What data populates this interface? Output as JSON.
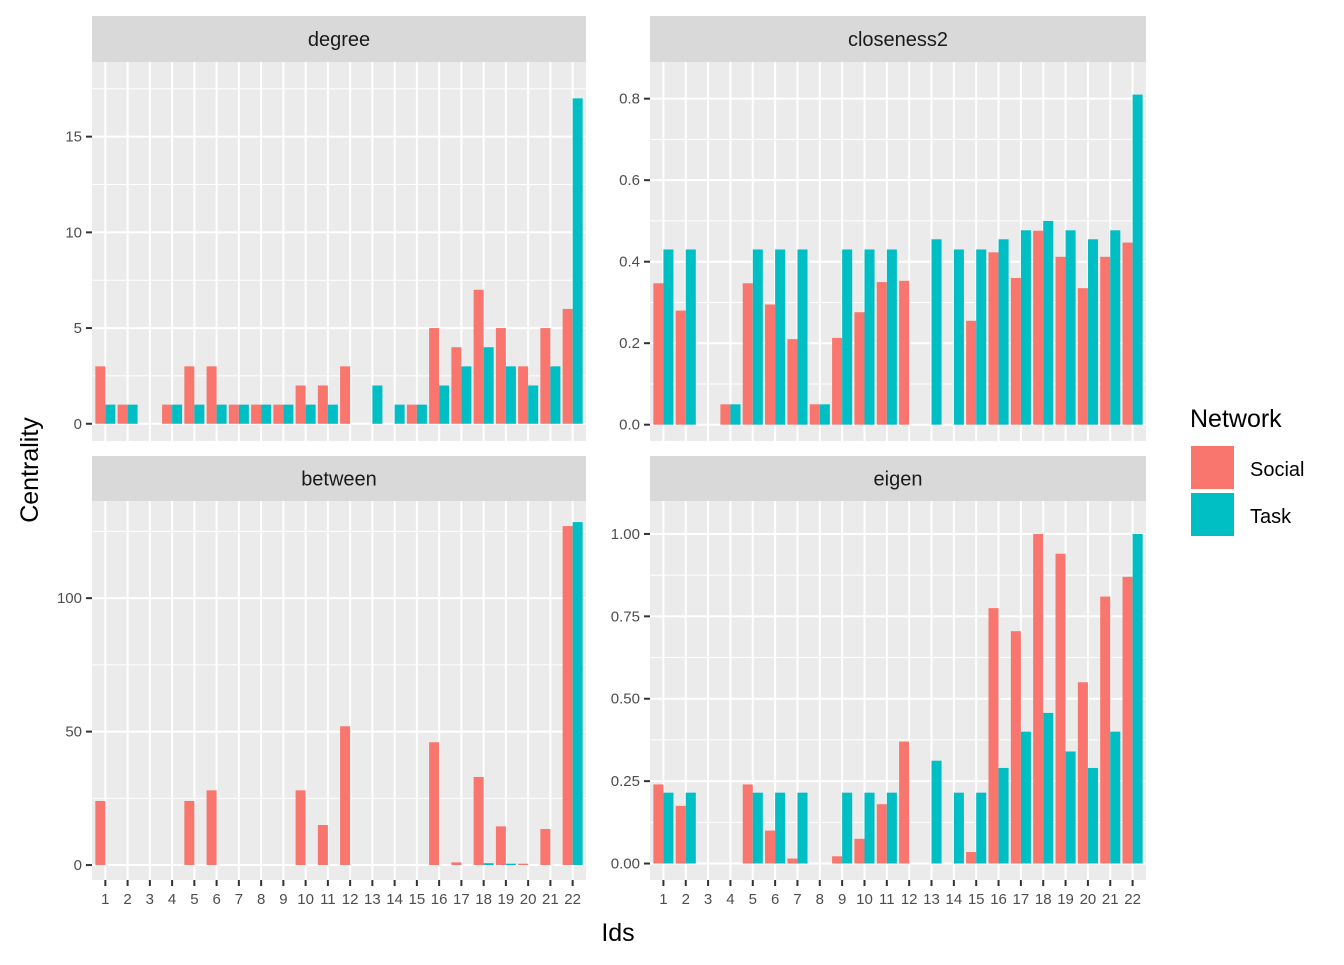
{
  "chart_data": {
    "type": "bar",
    "layout": "facet-grid-2x2",
    "xlabel": "Ids",
    "ylabel": "Centrality",
    "categories": [
      "1",
      "2",
      "3",
      "4",
      "5",
      "6",
      "7",
      "8",
      "9",
      "10",
      "11",
      "12",
      "13",
      "14",
      "15",
      "16",
      "17",
      "18",
      "19",
      "20",
      "21",
      "22"
    ],
    "legend": {
      "title": "Network",
      "placement": "right",
      "items": [
        {
          "name": "Social",
          "color": "#F8766D"
        },
        {
          "name": "Task",
          "color": "#00BFC4"
        }
      ]
    },
    "panels": [
      {
        "title": "degree",
        "ylim": [
          -0.9,
          18.9
        ],
        "yticks": [
          0,
          5,
          10,
          15
        ],
        "ytick_labels": [
          "0",
          "5",
          "10",
          "15"
        ],
        "series": [
          {
            "name": "Social",
            "values": [
              3,
              1,
              0,
              1,
              3,
              3,
              1,
              1,
              1,
              2,
              2,
              3,
              0,
              0,
              1,
              5,
              4,
              7,
              5,
              3,
              5,
              6
            ]
          },
          {
            "name": "Task",
            "values": [
              1,
              1,
              0,
              1,
              1,
              1,
              1,
              1,
              1,
              1,
              1,
              0,
              2,
              1,
              1,
              2,
              3,
              4,
              3,
              2,
              3,
              17
            ]
          }
        ]
      },
      {
        "title": "closeness2",
        "ylim": [
          -0.04,
          0.89
        ],
        "yticks": [
          0,
          0.2,
          0.4,
          0.6,
          0.8
        ],
        "ytick_labels": [
          "0.0",
          "0.2",
          "0.4",
          "0.6",
          "0.8"
        ],
        "series": [
          {
            "name": "Social",
            "values": [
              0.347,
              0.28,
              0,
              0.05,
              0.347,
              0.295,
              0.21,
              0.05,
              0.213,
              0.276,
              0.35,
              0.353,
              0,
              0,
              0.255,
              0.423,
              0.36,
              0.476,
              0.412,
              0.335,
              0.412,
              0.447
            ]
          },
          {
            "name": "Task",
            "values": [
              0.43,
              0.43,
              0,
              0.05,
              0.43,
              0.43,
              0.43,
              0.05,
              0.43,
              0.43,
              0.43,
              0,
              0.455,
              0.43,
              0.43,
              0.455,
              0.477,
              0.5,
              0.477,
              0.455,
              0.477,
              0.81
            ]
          }
        ]
      },
      {
        "title": "between",
        "ylim": [
          -5.6,
          136.4
        ],
        "yticks": [
          0,
          50,
          100
        ],
        "ytick_labels": [
          "0",
          "50",
          "100"
        ],
        "series": [
          {
            "name": "Social",
            "values": [
              24,
              0,
              0,
              0,
              24,
              28,
              0,
              0,
              0,
              28,
              15,
              52,
              0,
              0,
              0,
              46,
              1,
              33,
              14.5,
              0.5,
              13.5,
              127
            ]
          },
          {
            "name": "Task",
            "values": [
              0,
              0,
              0,
              0,
              0,
              0,
              0,
              0,
              0,
              0,
              0,
              0,
              0,
              0,
              0,
              0,
              0,
              0.7,
              0.5,
              0,
              0,
              128.5
            ]
          }
        ]
      },
      {
        "title": "eigen",
        "ylim": [
          -0.05,
          1.1
        ],
        "yticks": [
          0,
          0.25,
          0.5,
          0.75,
          1.0
        ],
        "ytick_labels": [
          "0.00",
          "0.25",
          "0.50",
          "0.75",
          "1.00"
        ],
        "series": [
          {
            "name": "Social",
            "values": [
              0.24,
              0.175,
              0,
              0,
              0.24,
              0.1,
              0.015,
              0,
              0.022,
              0.075,
              0.18,
              0.37,
              0,
              0,
              0.035,
              0.775,
              0.705,
              1.0,
              0.94,
              0.55,
              0.81,
              0.87
            ]
          },
          {
            "name": "Task",
            "values": [
              0.215,
              0.215,
              0,
              0,
              0.215,
              0.215,
              0.215,
              0,
              0.215,
              0.215,
              0.215,
              0,
              0.312,
              0.215,
              0.215,
              0.29,
              0.4,
              0.457,
              0.34,
              0.29,
              0.4,
              1.0
            ]
          }
        ]
      }
    ]
  }
}
